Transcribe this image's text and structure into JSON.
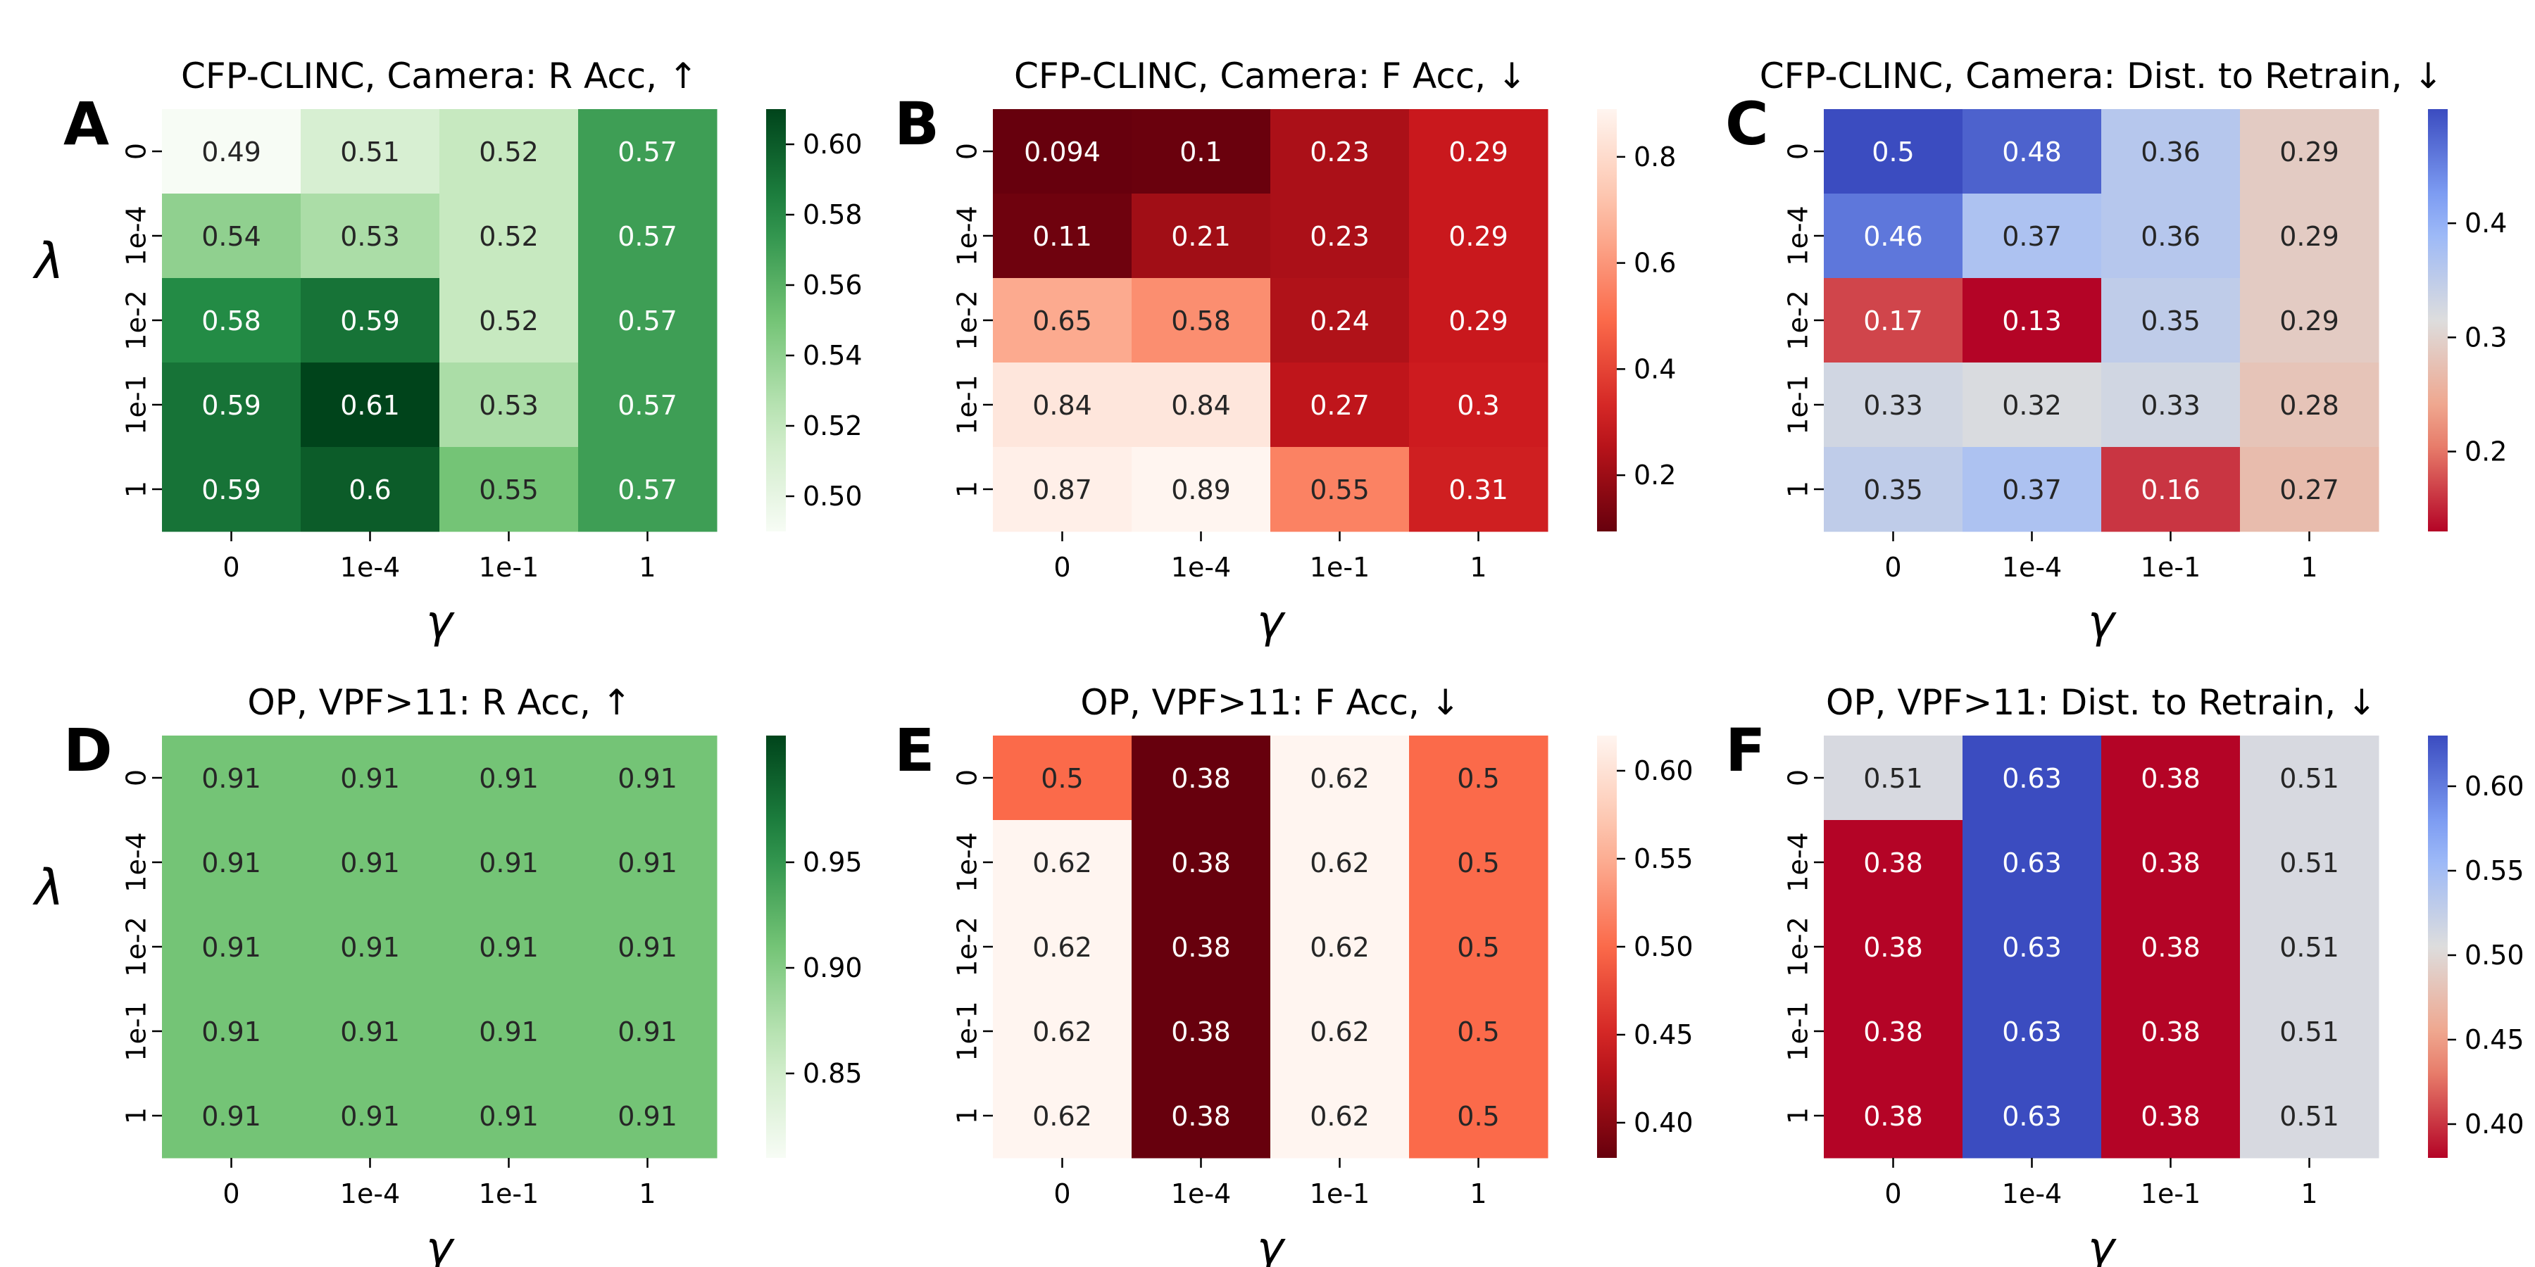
{
  "figure": {
    "x_ticks": [
      "0",
      "1e-4",
      "1e-1",
      "1"
    ],
    "y_ticks": [
      "0",
      "1e-4",
      "1e-2",
      "1e-1",
      "1"
    ],
    "xlabel": "γ",
    "ylabel": "λ"
  },
  "chart_data": [
    {
      "panel": "A",
      "type": "heatmap",
      "cmap": "greens",
      "title": "CFP-CLINC, Camera: R Acc,  ↑",
      "vmin": 0.49,
      "vmax": 0.61,
      "colorbar_ticks": [
        "0.50",
        "0.52",
        "0.54",
        "0.56",
        "0.58",
        "0.60"
      ],
      "values": [
        [
          0.49,
          0.51,
          0.52,
          0.57
        ],
        [
          0.54,
          0.53,
          0.52,
          0.57
        ],
        [
          0.58,
          0.59,
          0.52,
          0.57
        ],
        [
          0.59,
          0.61,
          0.53,
          0.57
        ],
        [
          0.59,
          0.6,
          0.55,
          0.57
        ]
      ]
    },
    {
      "panel": "B",
      "type": "heatmap",
      "cmap": "reds_r",
      "title": "CFP-CLINC, Camera: F Acc,  ↓",
      "vmin": 0.094,
      "vmax": 0.89,
      "colorbar_ticks": [
        "0.2",
        "0.4",
        "0.6",
        "0.8"
      ],
      "values": [
        [
          0.094,
          0.1,
          0.23,
          0.29
        ],
        [
          0.11,
          0.21,
          0.23,
          0.29
        ],
        [
          0.65,
          0.58,
          0.24,
          0.29
        ],
        [
          0.84,
          0.84,
          0.27,
          0.3
        ],
        [
          0.87,
          0.89,
          0.55,
          0.31
        ]
      ]
    },
    {
      "panel": "C",
      "type": "heatmap",
      "cmap": "coolwarm_r",
      "title": "CFP-CLINC, Camera: Dist. to Retrain,  ↓",
      "vmin": 0.13,
      "vmax": 0.5,
      "colorbar_ticks": [
        "0.2",
        "0.3",
        "0.4"
      ],
      "values": [
        [
          0.5,
          0.48,
          0.36,
          0.29
        ],
        [
          0.46,
          0.37,
          0.36,
          0.29
        ],
        [
          0.17,
          0.13,
          0.35,
          0.29
        ],
        [
          0.33,
          0.32,
          0.33,
          0.28
        ],
        [
          0.35,
          0.37,
          0.16,
          0.27
        ]
      ]
    },
    {
      "panel": "D",
      "type": "heatmap",
      "cmap": "greens",
      "title": "OP, VPF>11: R Acc,  ↑",
      "vmin": 0.81,
      "vmax": 1.01,
      "colorbar_ticks": [
        "0.85",
        "0.90",
        "0.95"
      ],
      "values": [
        [
          0.91,
          0.91,
          0.91,
          0.91
        ],
        [
          0.91,
          0.91,
          0.91,
          0.91
        ],
        [
          0.91,
          0.91,
          0.91,
          0.91
        ],
        [
          0.91,
          0.91,
          0.91,
          0.91
        ],
        [
          0.91,
          0.91,
          0.91,
          0.91
        ]
      ]
    },
    {
      "panel": "E",
      "type": "heatmap",
      "cmap": "reds_r",
      "title": "OP, VPF>11: F Acc,  ↓",
      "vmin": 0.38,
      "vmax": 0.62,
      "colorbar_ticks": [
        "0.40",
        "0.45",
        "0.50",
        "0.55",
        "0.60"
      ],
      "values": [
        [
          0.5,
          0.38,
          0.62,
          0.5
        ],
        [
          0.62,
          0.38,
          0.62,
          0.5
        ],
        [
          0.62,
          0.38,
          0.62,
          0.5
        ],
        [
          0.62,
          0.38,
          0.62,
          0.5
        ],
        [
          0.62,
          0.38,
          0.62,
          0.5
        ]
      ]
    },
    {
      "panel": "F",
      "type": "heatmap",
      "cmap": "coolwarm_r",
      "title": "OP, VPF>11: Dist. to Retrain,  ↓",
      "vmin": 0.38,
      "vmax": 0.63,
      "colorbar_ticks": [
        "0.40",
        "0.45",
        "0.50",
        "0.55",
        "0.60"
      ],
      "values": [
        [
          0.51,
          0.63,
          0.38,
          0.51
        ],
        [
          0.38,
          0.63,
          0.38,
          0.51
        ],
        [
          0.38,
          0.63,
          0.38,
          0.51
        ],
        [
          0.38,
          0.63,
          0.38,
          0.51
        ],
        [
          0.38,
          0.63,
          0.38,
          0.51
        ]
      ]
    }
  ]
}
